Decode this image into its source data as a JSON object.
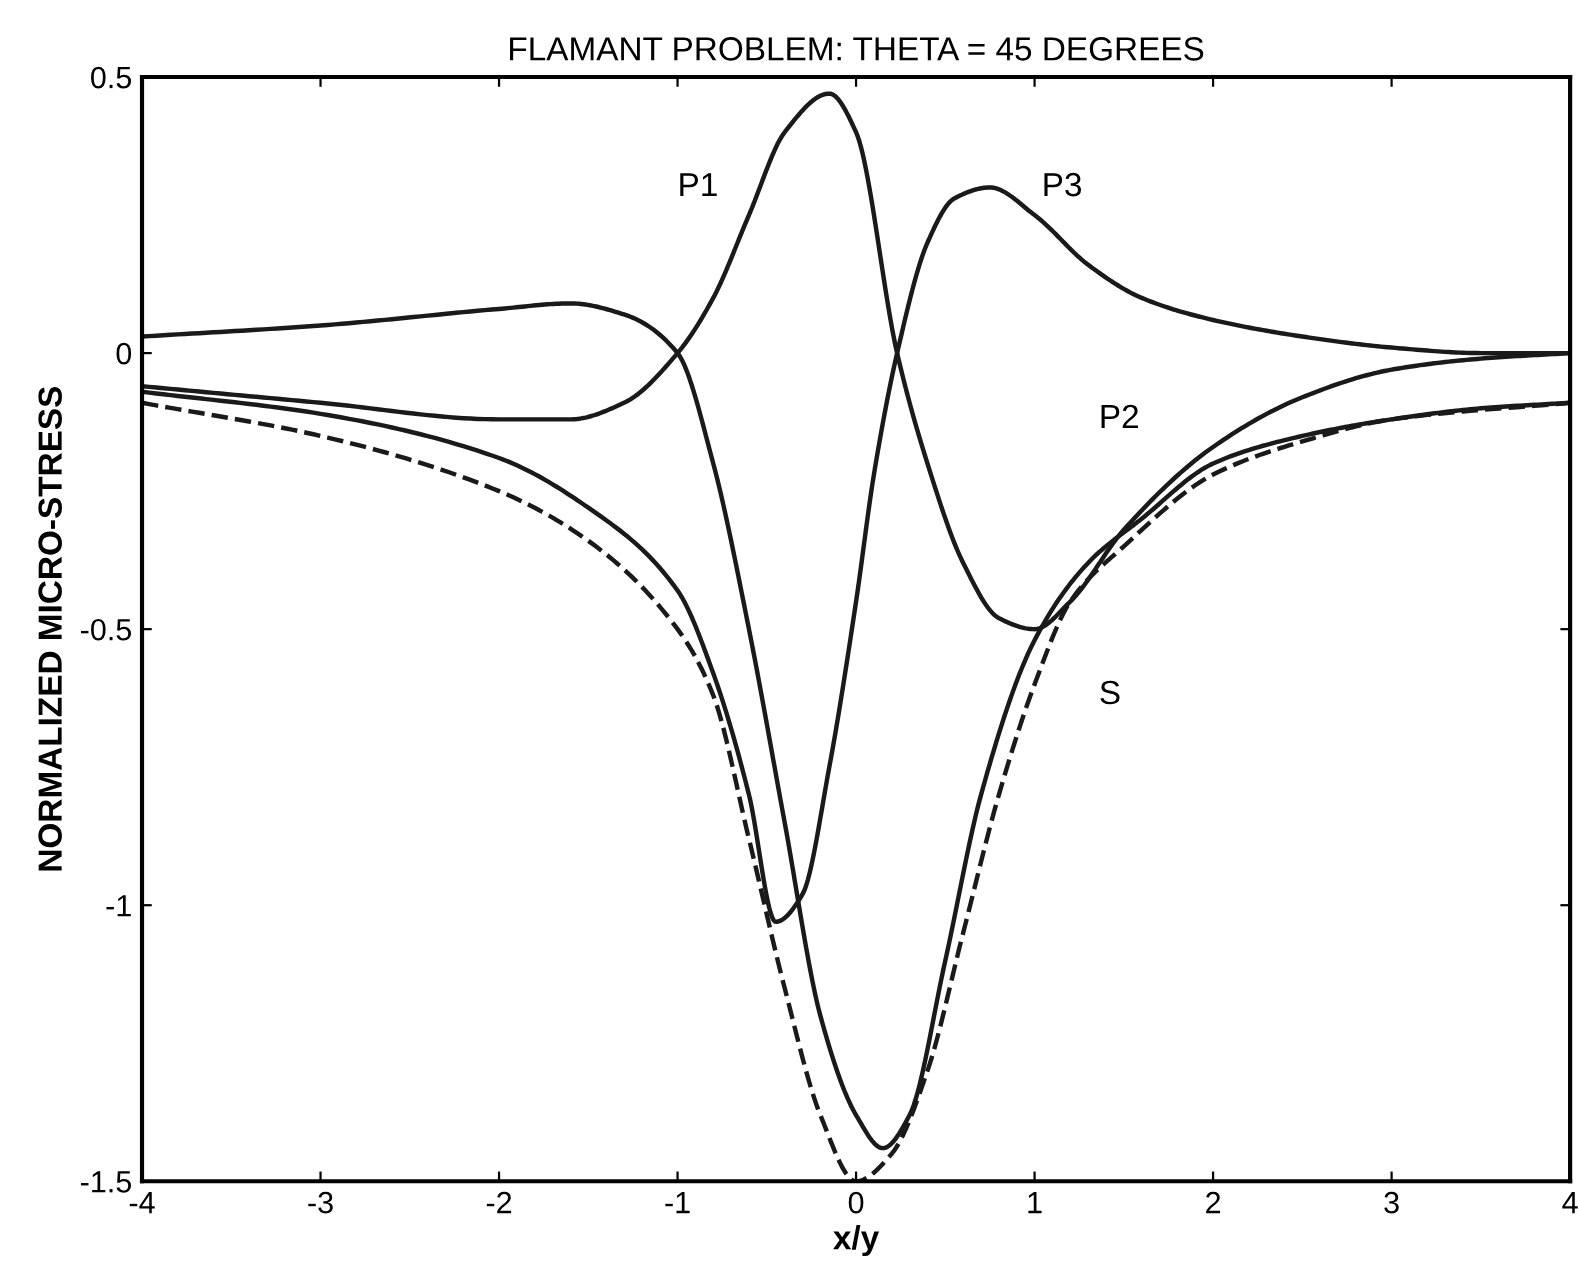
{
  "chart_data": {
    "type": "line",
    "title": "FLAMANT PROBLEM: THETA = 45 DEGREES",
    "xlabel": "x/y",
    "ylabel": "NORMALIZED MICRO-STRESS",
    "xlim": [
      -4,
      4
    ],
    "ylim": [
      -1.5,
      0.5
    ],
    "xticks": [
      -4,
      -3,
      -2,
      -1,
      0,
      1,
      2,
      3,
      4
    ],
    "yticks": [
      -1.5,
      -1,
      -0.5,
      0,
      0.5
    ],
    "grid": false,
    "legend": false,
    "marker": "none",
    "series": [
      {
        "color": "#1a1a1a",
        "line_style": "solid",
        "x": [
          -4,
          -3,
          -2,
          -1.6,
          -1.3,
          -1,
          -0.8,
          -0.6,
          -0.4,
          -0.2,
          0,
          0.15,
          0.3,
          0.5,
          0.7,
          1,
          1.3,
          1.6,
          2,
          2.5,
          3,
          3.5,
          4
        ],
        "values": [
          0.03,
          0.05,
          0.08,
          0.09,
          0.07,
          0.0,
          -0.2,
          -0.5,
          -0.85,
          -1.2,
          -1.38,
          -1.44,
          -1.38,
          -1.1,
          -0.8,
          -0.52,
          -0.38,
          -0.3,
          -0.2,
          -0.15,
          -0.12,
          -0.1,
          -0.09
        ]
      },
      {
        "color": "#1a1a1a",
        "line_style": "solid",
        "x": [
          -4,
          -3,
          -2,
          -1.6,
          -1.3,
          -1,
          -0.8,
          -0.6,
          -0.4,
          -0.15,
          0,
          0.23,
          0.4,
          0.6,
          0.8,
          1,
          1.2,
          1.5,
          2,
          2.5,
          3,
          3.5,
          4
        ],
        "values": [
          -0.06,
          -0.09,
          -0.12,
          -0.12,
          -0.09,
          0.0,
          0.1,
          0.25,
          0.4,
          0.47,
          0.4,
          0.0,
          -0.2,
          -0.38,
          -0.48,
          -0.5,
          -0.45,
          -0.32,
          -0.17,
          -0.08,
          -0.03,
          -0.01,
          0.0
        ]
      },
      {
        "color": "#1a1a1a",
        "line_style": "solid",
        "x": [
          -4,
          -3,
          -2,
          -1.5,
          -1,
          -0.8,
          -0.6,
          -0.45,
          -0.3,
          -0.15,
          0,
          0.1,
          0.23,
          0.4,
          0.55,
          0.75,
          1,
          1.3,
          1.6,
          2,
          2.5,
          3,
          3.5,
          4
        ],
        "values": [
          -0.07,
          -0.11,
          -0.19,
          -0.28,
          -0.43,
          -0.58,
          -0.8,
          -1.03,
          -0.98,
          -0.75,
          -0.45,
          -0.22,
          0.0,
          0.2,
          0.28,
          0.3,
          0.25,
          0.16,
          0.1,
          0.06,
          0.03,
          0.01,
          0.0,
          0.0
        ]
      },
      {
        "color": "#1a1a1a",
        "line_style": "dashed",
        "x": [
          -4,
          -3,
          -2,
          -1.5,
          -1,
          -0.8,
          -0.6,
          -0.4,
          -0.2,
          0,
          0.2,
          0.4,
          0.6,
          0.8,
          1,
          1.2,
          1.5,
          2,
          2.5,
          3,
          4
        ],
        "values": [
          -0.09,
          -0.15,
          -0.25,
          -0.34,
          -0.5,
          -0.62,
          -0.88,
          -1.15,
          -1.38,
          -1.5,
          -1.45,
          -1.3,
          -1.05,
          -0.8,
          -0.6,
          -0.45,
          -0.35,
          -0.22,
          -0.16,
          -0.12,
          -0.09
        ]
      }
    ],
    "annotations": [
      "P1",
      "P3",
      "P2",
      "S"
    ]
  }
}
